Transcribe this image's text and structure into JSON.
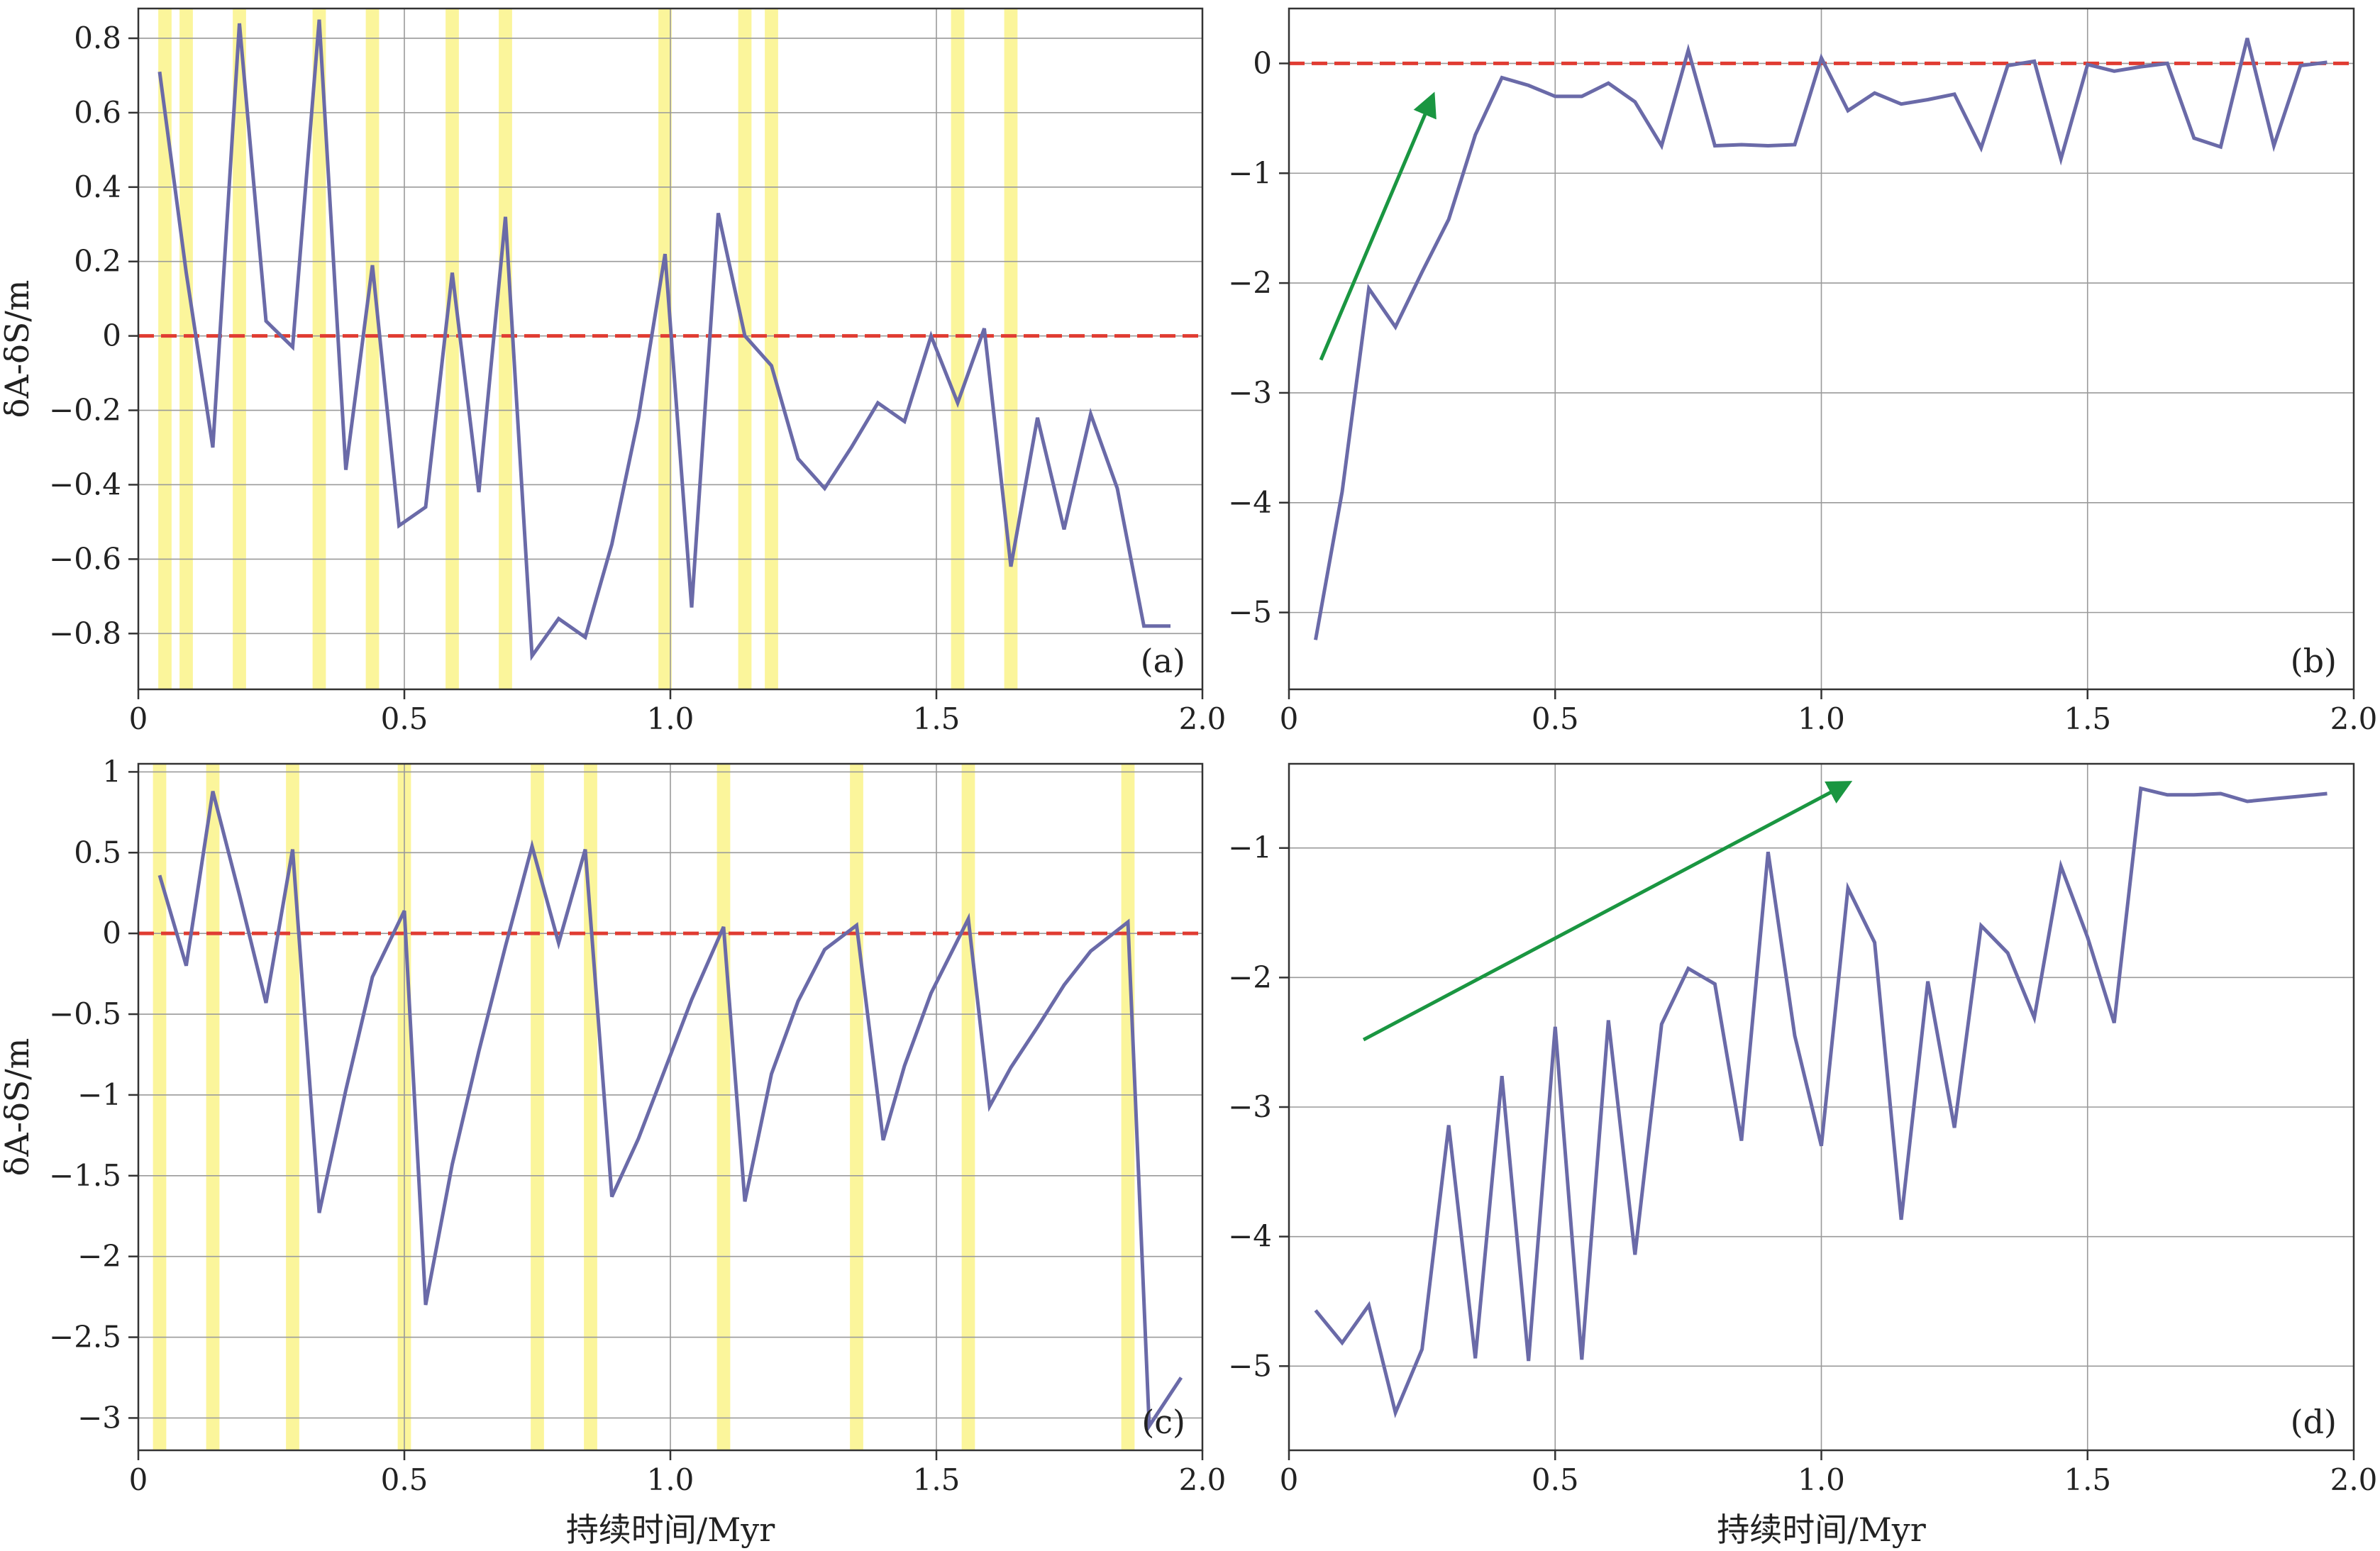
{
  "chart_data": [
    {
      "id": "a",
      "type": "line",
      "panel_label": "(a)",
      "xlabel": "",
      "ylabel": "δA-δS/m",
      "xlim": [
        0,
        2.0
      ],
      "ylim": [
        -0.95,
        0.88
      ],
      "xticks": [
        0,
        0.5,
        1.0,
        1.5,
        2.0
      ],
      "xtick_labels": [
        "0",
        "0.5",
        "1.0",
        "1.5",
        "2.0"
      ],
      "yticks": [
        0.8,
        0.6,
        0.4,
        0.2,
        0,
        -0.2,
        -0.4,
        -0.6,
        -0.8
      ],
      "ytick_labels": [
        "0.8",
        "0.6",
        "0.4",
        "0.2",
        "0",
        "−0.2",
        "−0.4",
        "−0.6",
        "−0.8"
      ],
      "grid": true,
      "reference_line": 0,
      "highlight_bands": [
        0.05,
        0.09,
        0.19,
        0.34,
        0.44,
        0.59,
        0.69,
        0.99,
        1.14,
        1.19,
        1.54,
        1.64
      ],
      "highlight_width": 0.025,
      "series": [
        {
          "x": [
            0.04,
            0.09,
            0.14,
            0.19,
            0.24,
            0.29,
            0.34,
            0.39,
            0.44,
            0.49,
            0.54,
            0.59,
            0.64,
            0.69,
            0.74,
            0.79,
            0.84,
            0.89,
            0.94,
            0.99,
            1.04,
            1.09,
            1.14,
            1.19,
            1.24,
            1.29,
            1.34,
            1.39,
            1.44,
            1.49,
            1.54,
            1.59,
            1.64,
            1.69,
            1.74,
            1.79,
            1.84,
            1.89,
            1.94
          ],
          "y": [
            0.71,
            0.17,
            -0.3,
            0.84,
            0.04,
            -0.03,
            0.85,
            -0.36,
            0.19,
            -0.51,
            -0.46,
            0.17,
            -0.42,
            0.32,
            -0.86,
            -0.76,
            -0.81,
            -0.56,
            -0.22,
            0.22,
            -0.73,
            0.33,
            0.0,
            -0.08,
            -0.33,
            -0.41,
            -0.3,
            -0.18,
            -0.23,
            0.0,
            -0.18,
            0.02,
            -0.62,
            -0.22,
            -0.52,
            -0.21,
            -0.41,
            -0.78,
            -0.78
          ]
        }
      ]
    },
    {
      "id": "b",
      "type": "line",
      "panel_label": "(b)",
      "xlabel": "",
      "ylabel": "",
      "xlim": [
        0,
        2.0
      ],
      "ylim": [
        -5.7,
        0.5
      ],
      "xticks": [
        0,
        0.5,
        1.0,
        1.5,
        2.0
      ],
      "xtick_labels": [
        "0",
        "0.5",
        "1.0",
        "1.5",
        "2.0"
      ],
      "yticks": [
        0,
        -1,
        -2,
        -3,
        -4,
        -5
      ],
      "ytick_labels": [
        "0",
        "−1",
        "−2",
        "−3",
        "−4",
        "−5"
      ],
      "grid": true,
      "reference_line": 0,
      "trend_arrow": {
        "x1": 0.06,
        "y1": -2.7,
        "x2": 0.27,
        "y2": -0.3
      },
      "series": [
        {
          "x": [
            0.05,
            0.1,
            0.15,
            0.2,
            0.25,
            0.3,
            0.35,
            0.4,
            0.45,
            0.5,
            0.55,
            0.6,
            0.65,
            0.7,
            0.75,
            0.8,
            0.85,
            0.9,
            0.95,
            1.0,
            1.05,
            1.1,
            1.15,
            1.2,
            1.25,
            1.3,
            1.35,
            1.4,
            1.45,
            1.5,
            1.55,
            1.6,
            1.65,
            1.7,
            1.75,
            1.8,
            1.85,
            1.9,
            1.95
          ],
          "y": [
            -5.25,
            -3.9,
            -2.05,
            -2.4,
            -1.9,
            -1.42,
            -0.65,
            -0.13,
            -0.2,
            -0.3,
            -0.3,
            -0.18,
            -0.35,
            -0.75,
            0.12,
            -0.75,
            -0.74,
            -0.75,
            -0.74,
            0.05,
            -0.43,
            -0.27,
            -0.37,
            -0.33,
            -0.28,
            -0.77,
            -0.02,
            0.02,
            -0.87,
            -0.01,
            -0.07,
            -0.03,
            0.0,
            -0.68,
            -0.76,
            0.23,
            -0.75,
            -0.02,
            0.01
          ]
        }
      ]
    },
    {
      "id": "c",
      "type": "line",
      "panel_label": "(c)",
      "xlabel": "持续时间/Myr",
      "ylabel": "δA-δS/m",
      "xlim": [
        0,
        2.0
      ],
      "ylim": [
        -3.2,
        1.05
      ],
      "xticks": [
        0,
        0.5,
        1.0,
        1.5,
        2.0
      ],
      "xtick_labels": [
        "0",
        "0.5",
        "1.0",
        "1.5",
        "2.0"
      ],
      "yticks": [
        1,
        0.5,
        0,
        -0.5,
        -1,
        -1.5,
        -2,
        -2.5,
        -3
      ],
      "ytick_labels": [
        "1",
        "0.5",
        "0",
        "−0.5",
        "−1",
        "−1.5",
        "−2",
        "−2.5",
        "−3"
      ],
      "grid": true,
      "reference_line": 0,
      "highlight_bands": [
        0.04,
        0.14,
        0.29,
        0.5,
        0.75,
        0.85,
        1.1,
        1.35,
        1.56,
        1.86
      ],
      "highlight_width": 0.025,
      "series": [
        {
          "x": [
            0.04,
            0.09,
            0.14,
            0.19,
            0.24,
            0.29,
            0.34,
            0.39,
            0.44,
            0.5,
            0.54,
            0.59,
            0.64,
            0.69,
            0.74,
            0.79,
            0.84,
            0.89,
            0.94,
            0.99,
            1.04,
            1.1,
            1.14,
            1.19,
            1.24,
            1.29,
            1.35,
            1.4,
            1.44,
            1.49,
            1.56,
            1.6,
            1.64,
            1.69,
            1.74,
            1.79,
            1.86,
            1.9,
            1.96
          ],
          "y": [
            0.36,
            -0.2,
            0.88,
            0.24,
            -0.43,
            0.52,
            -1.73,
            -0.97,
            -0.27,
            0.14,
            -2.3,
            -1.43,
            -0.73,
            -0.08,
            0.54,
            -0.06,
            0.52,
            -1.63,
            -1.27,
            -0.84,
            -0.41,
            0.04,
            -1.66,
            -0.87,
            -0.42,
            -0.1,
            0.05,
            -1.28,
            -0.82,
            -0.37,
            0.09,
            -1.07,
            -0.83,
            -0.58,
            -0.32,
            -0.11,
            0.07,
            -3.05,
            -2.75
          ]
        }
      ]
    },
    {
      "id": "d",
      "type": "line",
      "panel_label": "(d)",
      "xlabel": "持续时间/Myr",
      "ylabel": "",
      "xlim": [
        0,
        2.0
      ],
      "ylim": [
        -5.65,
        -0.35
      ],
      "xticks": [
        0,
        0.5,
        1.0,
        1.5,
        2.0
      ],
      "xtick_labels": [
        "0",
        "0.5",
        "1.0",
        "1.5",
        "2.0"
      ],
      "yticks": [
        -1,
        -2,
        -3,
        -4,
        -5
      ],
      "ytick_labels": [
        "−1",
        "−2",
        "−3",
        "−4",
        "−5"
      ],
      "grid": true,
      "trend_arrow": {
        "x1": 0.14,
        "y1": -2.48,
        "x2": 1.05,
        "y2": -0.5
      },
      "series": [
        {
          "x": [
            0.05,
            0.1,
            0.15,
            0.2,
            0.25,
            0.3,
            0.35,
            0.4,
            0.45,
            0.5,
            0.55,
            0.6,
            0.65,
            0.7,
            0.75,
            0.8,
            0.85,
            0.9,
            0.95,
            1.0,
            1.05,
            1.1,
            1.15,
            1.2,
            1.25,
            1.3,
            1.35,
            1.4,
            1.45,
            1.5,
            1.55,
            1.6,
            1.65,
            1.7,
            1.75,
            1.8,
            1.85,
            1.9,
            1.95
          ],
          "y": [
            -4.57,
            -4.82,
            -4.53,
            -5.36,
            -4.87,
            -3.14,
            -4.94,
            -2.76,
            -4.96,
            -2.38,
            -4.95,
            -2.33,
            -4.14,
            -2.36,
            -1.93,
            -2.05,
            -3.26,
            -1.03,
            -2.45,
            -3.3,
            -1.31,
            -1.73,
            -3.87,
            -2.03,
            -3.16,
            -1.6,
            -1.81,
            -2.31,
            -1.14,
            -1.69,
            -2.35,
            -0.54,
            -0.59,
            -0.59,
            -0.58,
            -0.64,
            -0.62,
            -0.6,
            -0.58
          ]
        }
      ]
    }
  ],
  "colors": {
    "line": "#6a6aa8",
    "reference": "#e03c32",
    "highlight": "#fbf59b",
    "arrow": "#1a9641",
    "grid": "#9a9a9a",
    "axis": "#333333"
  }
}
